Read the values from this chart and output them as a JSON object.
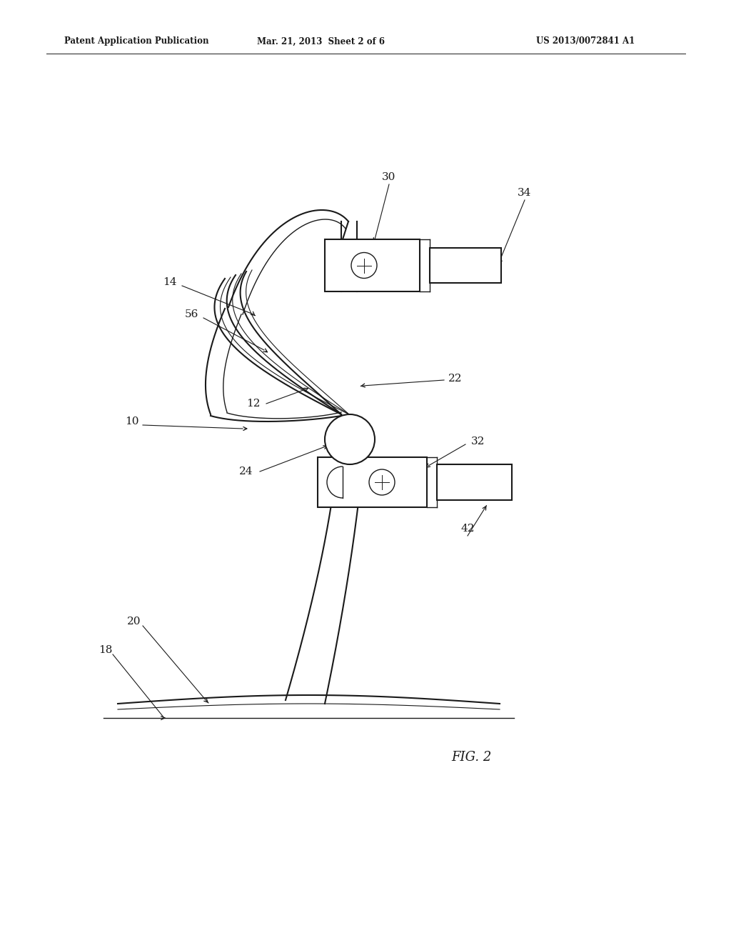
{
  "bg_color": "#ffffff",
  "line_color": "#1a1a1a",
  "header_left": "Patent Application Publication",
  "header_center": "Mar. 21, 2013  Sheet 2 of 6",
  "header_right": "US 2013/0072841 A1",
  "fig_label": "FIG. 2",
  "figsize": [
    10.24,
    13.2
  ],
  "dpi": 100
}
